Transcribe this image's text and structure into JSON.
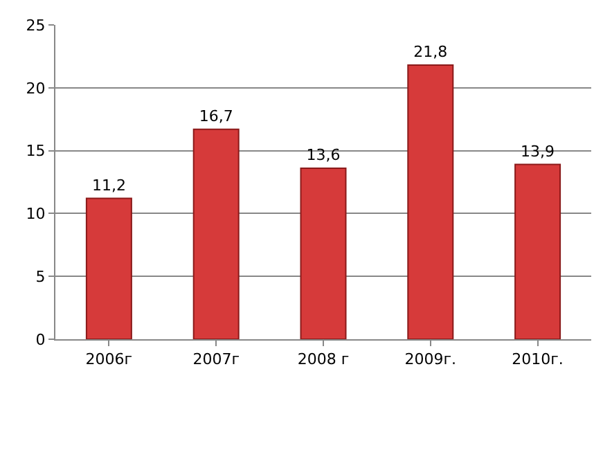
{
  "chart_data": {
    "type": "bar",
    "categories": [
      "2006г",
      "2007г",
      "2008 г",
      "2009г.",
      "2010г."
    ],
    "values": [
      11.2,
      16.7,
      13.6,
      21.8,
      13.9
    ],
    "value_labels": [
      "11,2",
      "16,7",
      "13,6",
      "21,8",
      "13,9"
    ],
    "color": "#d63a3a",
    "ylim": [
      0,
      25
    ],
    "yticks": [
      0,
      5,
      10,
      15,
      20,
      25
    ],
    "grid": "y",
    "legend": false
  }
}
